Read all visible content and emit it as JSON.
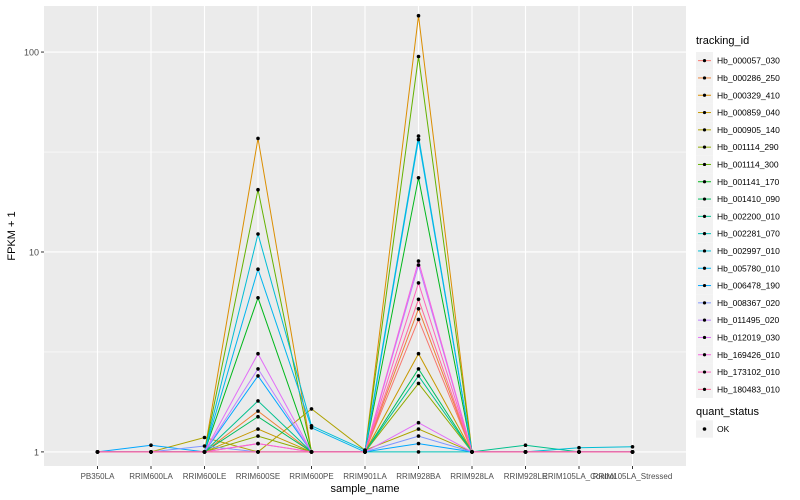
{
  "chart_data": {
    "type": "line",
    "xlabel": "sample_name",
    "ylabel": "FPKM + 1",
    "y_scale": "log10",
    "ylim": [
      0.85,
      170
    ],
    "y_ticks": [
      {
        "value": 1,
        "label": "1"
      },
      {
        "value": 10,
        "label": "10"
      },
      {
        "value": 100,
        "label": "100"
      }
    ],
    "grid": true,
    "background": "#EBEBEB",
    "categories": [
      "PB350LA",
      "RRIM600LA",
      "RRIM600LE",
      "RRIM600SE",
      "RRIM600PE",
      "RRIM901LA",
      "RRIM928BA",
      "RRIM928LA",
      "RRIM928LE",
      "RRIM105LA_Control",
      "RRIM105LA_Stressed"
    ],
    "series": [
      {
        "name": "Hb_000057_030",
        "color": "#F8766D",
        "values": [
          1.0,
          1.0,
          1.0,
          1.1,
          1.0,
          1.0,
          4.6,
          1.0,
          1.0,
          1.0,
          1.0
        ]
      },
      {
        "name": "Hb_000286_250",
        "color": "#EC8239",
        "values": [
          1.0,
          1.0,
          1.0,
          1.6,
          1.0,
          1.0,
          5.2,
          1.0,
          1.0,
          1.0,
          1.0
        ]
      },
      {
        "name": "Hb_000329_410",
        "color": "#DB8E00",
        "values": [
          1.0,
          1.0,
          1.0,
          37,
          1.0,
          1.0,
          152,
          1.0,
          1.0,
          1.0,
          1.0
        ]
      },
      {
        "name": "Hb_000859_040",
        "color": "#C79800",
        "values": [
          1.0,
          1.0,
          1.0,
          1.3,
          1.0,
          1.0,
          3.1,
          1.0,
          1.0,
          1.0,
          1.0
        ]
      },
      {
        "name": "Hb_000905_140",
        "color": "#AEA200",
        "values": [
          1.0,
          1.0,
          1.18,
          1.0,
          1.64,
          1.02,
          1.3,
          1.0,
          1.0,
          1.0,
          1.0
        ]
      },
      {
        "name": "Hb_001114_290",
        "color": "#8FAA00",
        "values": [
          1.0,
          1.0,
          1.0,
          1.2,
          1.0,
          1.0,
          2.2,
          1.0,
          1.0,
          1.0,
          1.0
        ]
      },
      {
        "name": "Hb_001114_300",
        "color": "#64B200",
        "values": [
          1.0,
          1.0,
          1.0,
          20.5,
          1.0,
          1.0,
          95,
          1.0,
          1.0,
          1.0,
          1.0
        ]
      },
      {
        "name": "Hb_001141_170",
        "color": "#00B81B",
        "values": [
          1.0,
          1.0,
          1.0,
          5.9,
          1.0,
          1.0,
          23.5,
          1.0,
          1.0,
          1.0,
          1.0
        ]
      },
      {
        "name": "Hb_001410_090",
        "color": "#00BD5C",
        "values": [
          1.0,
          1.0,
          1.0,
          1.5,
          1.0,
          1.0,
          2.6,
          1.0,
          1.0,
          1.0,
          1.0
        ]
      },
      {
        "name": "Hb_002200_010",
        "color": "#00C08E",
        "values": [
          1.0,
          1.0,
          1.0,
          1.8,
          1.0,
          1.0,
          2.4,
          1.0,
          1.08,
          1.0,
          1.0
        ]
      },
      {
        "name": "Hb_002281_070",
        "color": "#00C1B7",
        "values": [
          1.0,
          1.0,
          1.0,
          1.0,
          1.0,
          1.0,
          1.0,
          1.0,
          1.0,
          1.0,
          1.0
        ]
      },
      {
        "name": "Hb_002997_010",
        "color": "#00BDD4",
        "values": [
          1.0,
          1.0,
          1.0,
          12.3,
          1.35,
          1.02,
          38,
          1.0,
          1.0,
          1.05,
          1.06
        ]
      },
      {
        "name": "Hb_005780_010",
        "color": "#00B5EE",
        "values": [
          1.0,
          1.0,
          1.0,
          8.2,
          1.32,
          1.0,
          36.5,
          1.0,
          1.0,
          1.0,
          1.0
        ]
      },
      {
        "name": "Hb_006478_190",
        "color": "#00A7FF",
        "values": [
          1.0,
          1.08,
          1.0,
          2.4,
          1.0,
          1.0,
          1.1,
          1.0,
          1.0,
          1.0,
          1.0
        ]
      },
      {
        "name": "Hb_008367_020",
        "color": "#7F96FF",
        "values": [
          1.0,
          1.0,
          1.07,
          1.0,
          1.0,
          1.0,
          1.2,
          1.0,
          1.0,
          1.0,
          1.0
        ]
      },
      {
        "name": "Hb_011495_020",
        "color": "#BC81FF",
        "values": [
          1.0,
          1.0,
          1.0,
          2.6,
          1.0,
          1.0,
          8.6,
          1.0,
          1.0,
          1.0,
          1.0
        ]
      },
      {
        "name": "Hb_012019_030",
        "color": "#E26EF7",
        "values": [
          1.0,
          1.0,
          1.0,
          3.1,
          1.0,
          1.0,
          1.4,
          1.0,
          1.0,
          1.0,
          1.0
        ]
      },
      {
        "name": "Hb_169426_010",
        "color": "#F863DF",
        "values": [
          1.0,
          1.0,
          1.0,
          1.1,
          1.0,
          1.0,
          9.0,
          1.0,
          1.0,
          1.0,
          1.0
        ]
      },
      {
        "name": "Hb_173102_010",
        "color": "#FF62BF",
        "values": [
          1.0,
          1.0,
          1.0,
          1.0,
          1.0,
          1.0,
          7.0,
          1.0,
          1.0,
          1.0,
          1.0
        ]
      },
      {
        "name": "Hb_180483_010",
        "color": "#FF6A98",
        "values": [
          1.0,
          1.0,
          1.0,
          1.0,
          1.0,
          1.0,
          5.8,
          1.0,
          1.0,
          1.0,
          1.0
        ]
      }
    ],
    "legend": {
      "title": "tracking_id",
      "position": "right",
      "status_title": "quant_status",
      "status_items": [
        {
          "label": "OK",
          "color": "#000000"
        }
      ]
    }
  }
}
